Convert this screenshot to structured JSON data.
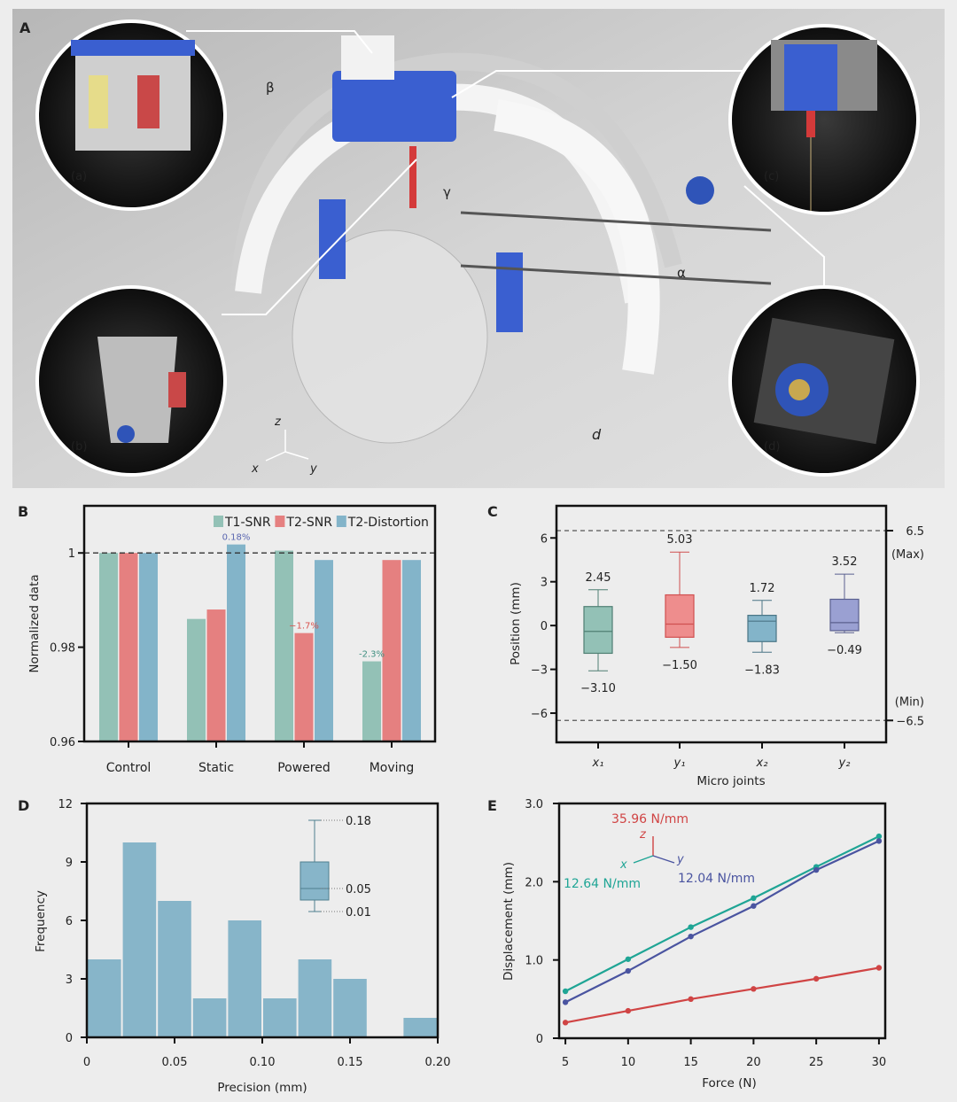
{
  "panel_a": {
    "label": "A",
    "insets": [
      "(a)",
      "(b)",
      "(c)",
      "(d)"
    ],
    "motion_labels": {
      "beta": "β",
      "gamma": "γ",
      "alpha": "α",
      "d": "d"
    },
    "axes": {
      "x": "x",
      "y": "y",
      "z": "z"
    }
  },
  "chart_data": [
    {
      "panel": "B",
      "type": "bar",
      "ylabel": "Normalized data",
      "xlabel": "",
      "ylim": [
        0.96,
        1.01
      ],
      "yticks": [
        0.96,
        0.98,
        1
      ],
      "ytick_labels": [
        "0.96",
        "0.98",
        "1"
      ],
      "reference_line": 1,
      "legend_position": "top-right",
      "categories": [
        "Control",
        "Static",
        "Powered",
        "Moving"
      ],
      "series": [
        {
          "name": "T1-SNR",
          "color": "#93c1b6",
          "values": [
            1.0,
            0.986,
            1.0005,
            0.977
          ]
        },
        {
          "name": "T2-SNR",
          "color": "#e58080",
          "values": [
            1.0,
            0.988,
            0.983,
            0.9985
          ]
        },
        {
          "name": "T2-Distortion",
          "color": "#83b4c9",
          "values": [
            1.0,
            1.0018,
            0.9985,
            0.9985
          ]
        }
      ],
      "annotations": [
        {
          "text": "0.18%",
          "category": "Static",
          "series": "T2-Distortion",
          "color": "#5a66b0"
        },
        {
          "text": "−1.7%",
          "category": "Powered",
          "series": "T2-SNR",
          "color": "#d9534f"
        },
        {
          "text": "-2.3%",
          "category": "Moving",
          "series": "T1-SNR",
          "color": "#3f8f80"
        }
      ]
    },
    {
      "panel": "C",
      "type": "box",
      "ylabel": "Position (mm)",
      "xlabel": "Micro joints",
      "ylim": [
        -8,
        8.2
      ],
      "yticks": [
        -6,
        -3,
        0,
        3,
        6
      ],
      "ytick_labels": [
        "−6",
        "−3",
        "0",
        "3",
        "6"
      ],
      "limits": [
        {
          "value": 6.5,
          "label": "6.5",
          "note": "(Max)"
        },
        {
          "value": -6.5,
          "label": "−6.5",
          "note": "(Min)"
        }
      ],
      "categories": [
        "x₁",
        "y₁",
        "x₂",
        "y₂"
      ],
      "boxes": [
        {
          "min": -3.1,
          "q1": -1.9,
          "median": -0.4,
          "q3": 1.3,
          "max": 2.45,
          "min_label": "−3.10",
          "max_label": "2.45",
          "color": "#93c1b6",
          "stroke": "#4f7f73"
        },
        {
          "min": -1.5,
          "q1": -0.8,
          "median": 0.1,
          "q3": 2.1,
          "max": 5.03,
          "min_label": "−1.50",
          "max_label": "5.03",
          "color": "#ee8d8d",
          "stroke": "#d05050"
        },
        {
          "min": -1.83,
          "q1": -1.1,
          "median": 0.3,
          "q3": 0.7,
          "max": 1.72,
          "min_label": "−1.83",
          "max_label": "1.72",
          "color": "#83b4c9",
          "stroke": "#4a7585"
        },
        {
          "min": -0.49,
          "q1": -0.35,
          "median": 0.2,
          "q3": 1.8,
          "max": 3.52,
          "min_label": "−0.49",
          "max_label": "3.52",
          "color": "#9aa0d2",
          "stroke": "#5a5f8f"
        }
      ]
    },
    {
      "panel": "D",
      "type": "histogram",
      "xlabel": "Precision (mm)",
      "ylabel": "Frequency",
      "xlim": [
        0,
        0.2
      ],
      "ylim": [
        0,
        12
      ],
      "xticks": [
        0,
        0.05,
        0.1,
        0.15,
        0.2
      ],
      "xtick_labels": [
        "0",
        "0.05",
        "0.10",
        "0.15",
        "0.20"
      ],
      "yticks": [
        0,
        3,
        6,
        9,
        12
      ],
      "ytick_labels": [
        "0",
        "3",
        "6",
        "9",
        "12"
      ],
      "bin_edges": [
        0,
        0.02,
        0.04,
        0.06,
        0.08,
        0.1,
        0.12,
        0.14,
        0.16,
        0.18,
        0.2
      ],
      "counts": [
        4,
        10,
        7,
        2,
        6,
        2,
        4,
        3,
        0,
        1
      ],
      "color": "#87b5c9",
      "inset_box": {
        "max": 0.18,
        "median": 0.05,
        "min": 0.01,
        "max_label": "0.18",
        "median_label": "0.05",
        "min_label": "0.01"
      }
    },
    {
      "panel": "E",
      "type": "line",
      "xlabel": "Force (N)",
      "ylabel": "Displacement (mm)",
      "xlim": [
        4.5,
        30.5
      ],
      "ylim": [
        0,
        3.0
      ],
      "xticks": [
        5,
        10,
        15,
        20,
        25,
        30
      ],
      "xtick_labels": [
        "5",
        "10",
        "15",
        "20",
        "25",
        "30"
      ],
      "yticks": [
        0,
        1,
        2,
        3
      ],
      "ytick_labels": [
        "0",
        "1.0",
        "2.0",
        "3.0"
      ],
      "x": [
        5,
        10,
        15,
        20,
        25,
        30
      ],
      "series": [
        {
          "name": "x",
          "stiffness": "12.64 N/mm",
          "color": "#1fa595",
          "values": [
            0.6,
            1.01,
            1.42,
            1.79,
            2.19,
            2.58
          ]
        },
        {
          "name": "y",
          "stiffness": "12.04 N/mm",
          "color": "#4a54a0",
          "values": [
            0.46,
            0.86,
            1.3,
            1.69,
            2.15,
            2.52
          ]
        },
        {
          "name": "z",
          "stiffness": "35.96 N/mm",
          "color": "#d04444",
          "values": [
            0.2,
            0.35,
            0.5,
            0.63,
            0.76,
            0.9
          ]
        }
      ]
    }
  ]
}
